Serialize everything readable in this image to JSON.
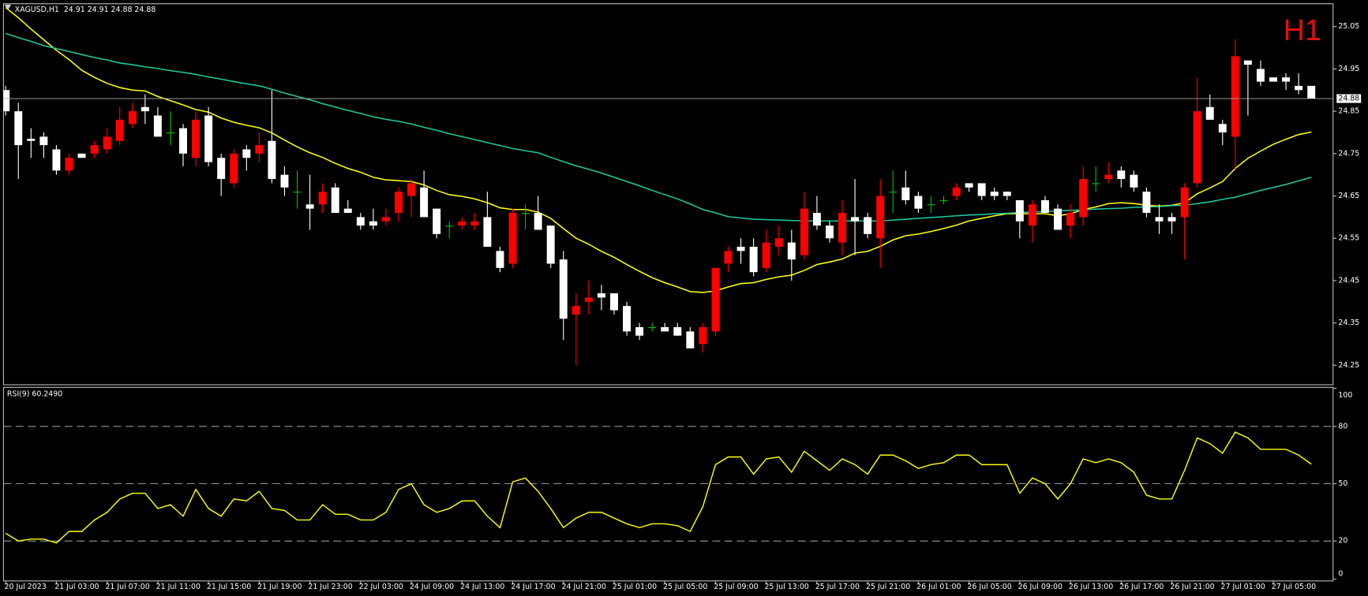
{
  "chart_data": [
    {
      "type": "candlestick",
      "title": "XAGUSD,H1  24.91 24.91 24.88 24.88",
      "label": "H1",
      "label_color": "#e01010",
      "up_color": "#ff0000",
      "down_color": "#ffffff",
      "doji_color": "#00c000",
      "categories": [
        "20 Jul 2023",
        null,
        null,
        null,
        "21 Jul 03:00",
        null,
        null,
        null,
        "21 Jul 07:00",
        null,
        null,
        null,
        "21 Jul 11:00",
        null,
        null,
        null,
        "21 Jul 15:00",
        null,
        null,
        null,
        "21 Jul 19:00",
        null,
        null,
        null,
        "21 Jul 23:00",
        null,
        null,
        null,
        "22 Jul 03:00",
        null,
        null,
        null,
        "24 Jul 09:00",
        null,
        null,
        null,
        "24 Jul 13:00",
        null,
        null,
        null,
        "24 Jul 17:00",
        null,
        null,
        null,
        "24 Jul 21:00",
        null,
        null,
        null,
        "25 Jul 01:00",
        null,
        null,
        null,
        "25 Jul 05:00",
        null,
        null,
        null,
        "25 Jul 09:00",
        null,
        null,
        null,
        "25 Jul 13:00",
        null,
        null,
        null,
        "25 Jul 17:00",
        null,
        null,
        null,
        "25 Jul 21:00",
        null,
        null,
        null,
        "26 Jul 01:00",
        null,
        null,
        null,
        "26 Jul 05:00",
        null,
        null,
        null,
        "26 Jul 09:00",
        null,
        null,
        null,
        "26 Jul 13:00",
        null,
        null,
        null,
        "26 Jul 17:00",
        null,
        null,
        null,
        "26 Jul 21:00",
        null,
        null,
        null,
        "27 Jul 01:00",
        null,
        null,
        null,
        "27 Jul 05:00",
        null,
        null,
        null
      ],
      "open": [
        24.9,
        24.85,
        24.785,
        24.79,
        24.76,
        24.71,
        24.75,
        24.75,
        24.76,
        24.78,
        24.82,
        24.86,
        24.84,
        24.8,
        24.81,
        24.74,
        24.84,
        24.74,
        24.68,
        24.76,
        24.75,
        24.78,
        24.7,
        24.66,
        24.63,
        24.63,
        24.67,
        24.62,
        24.6,
        24.59,
        24.59,
        24.61,
        24.65,
        24.67,
        24.62,
        24.58,
        24.58,
        24.58,
        24.6,
        24.52,
        24.49,
        24.61,
        24.61,
        24.58,
        24.5,
        24.37,
        24.4,
        24.42,
        24.42,
        24.39,
        24.34,
        24.34,
        24.34,
        24.34,
        24.33,
        24.3,
        24.33,
        24.49,
        24.53,
        24.53,
        24.48,
        24.53,
        24.54,
        24.51,
        24.61,
        24.58,
        24.54,
        24.6,
        24.6,
        24.55,
        24.66,
        24.67,
        24.65,
        24.63,
        24.64,
        24.65,
        24.68,
        24.68,
        24.66,
        24.66,
        24.64,
        24.58,
        24.64,
        24.62,
        24.58,
        24.6,
        24.68,
        24.69,
        24.71,
        24.7,
        24.66,
        24.6,
        24.6,
        24.6,
        24.68,
        24.86,
        24.82,
        24.79,
        24.97,
        24.95,
        24.93,
        24.93,
        24.91,
        24.91
      ],
      "high": [
        24.91,
        24.87,
        24.81,
        24.8,
        24.77,
        24.75,
        24.75,
        24.78,
        24.81,
        24.86,
        24.87,
        24.89,
        24.86,
        24.85,
        24.82,
        24.85,
        24.86,
        24.75,
        24.76,
        24.77,
        24.8,
        24.9,
        24.72,
        24.71,
        24.7,
        24.68,
        24.68,
        24.64,
        24.61,
        24.62,
        24.62,
        24.67,
        24.69,
        24.71,
        24.62,
        24.59,
        24.6,
        24.61,
        24.66,
        24.53,
        24.62,
        24.63,
        24.65,
        24.58,
        24.52,
        24.42,
        24.45,
        24.44,
        24.42,
        24.4,
        24.35,
        24.35,
        24.35,
        24.35,
        24.34,
        24.35,
        24.48,
        24.53,
        24.55,
        24.55,
        24.57,
        24.58,
        24.57,
        24.66,
        24.65,
        24.59,
        24.64,
        24.69,
        24.61,
        24.69,
        24.71,
        24.71,
        24.66,
        24.65,
        24.65,
        24.68,
        24.68,
        24.68,
        24.67,
        24.66,
        24.64,
        24.64,
        24.65,
        24.63,
        24.63,
        24.72,
        24.72,
        24.73,
        24.72,
        24.71,
        24.67,
        24.63,
        24.61,
        24.68,
        24.93,
        24.89,
        24.83,
        25.02,
        24.97,
        24.97,
        24.93,
        24.94,
        24.94,
        24.91
      ],
      "low": [
        24.84,
        24.69,
        24.74,
        24.74,
        24.7,
        24.7,
        24.74,
        24.74,
        24.75,
        24.77,
        24.81,
        24.82,
        24.79,
        24.77,
        24.72,
        24.72,
        24.72,
        24.65,
        24.67,
        24.71,
        24.73,
        24.68,
        24.65,
        24.62,
        24.57,
        24.61,
        24.61,
        24.61,
        24.57,
        24.57,
        24.58,
        24.59,
        24.6,
        24.6,
        24.55,
        24.55,
        24.57,
        24.57,
        24.53,
        24.47,
        24.48,
        24.57,
        24.57,
        24.48,
        24.31,
        24.25,
        24.37,
        24.38,
        24.37,
        24.32,
        24.31,
        24.33,
        24.33,
        24.32,
        24.29,
        24.28,
        24.32,
        24.47,
        24.49,
        24.46,
        24.47,
        24.51,
        24.45,
        24.5,
        24.57,
        24.54,
        24.51,
        24.51,
        24.55,
        24.48,
        24.61,
        24.63,
        24.61,
        24.61,
        24.63,
        24.64,
        24.66,
        24.64,
        24.64,
        24.64,
        24.55,
        24.54,
        24.61,
        24.57,
        24.55,
        24.58,
        24.66,
        24.68,
        24.67,
        24.66,
        24.6,
        24.56,
        24.56,
        24.5,
        24.67,
        24.83,
        24.77,
        24.71,
        24.84,
        24.91,
        24.92,
        24.9,
        24.89,
        24.88
      ],
      "close": [
        24.85,
        24.77,
        24.78,
        24.77,
        24.71,
        24.74,
        24.74,
        24.77,
        24.79,
        24.83,
        24.85,
        24.85,
        24.79,
        24.8,
        24.75,
        24.83,
        24.73,
        24.69,
        24.75,
        24.74,
        24.77,
        24.69,
        24.67,
        24.66,
        24.62,
        24.66,
        24.61,
        24.61,
        24.58,
        24.58,
        24.6,
        24.66,
        24.68,
        24.6,
        24.56,
        24.58,
        24.59,
        24.59,
        24.53,
        24.48,
        24.61,
        24.61,
        24.57,
        24.49,
        24.36,
        24.39,
        24.41,
        24.41,
        24.38,
        24.33,
        24.32,
        24.34,
        24.33,
        24.32,
        24.29,
        24.34,
        24.48,
        24.52,
        24.52,
        24.47,
        24.54,
        24.55,
        24.5,
        24.62,
        24.58,
        24.55,
        24.61,
        24.59,
        24.56,
        24.65,
        24.66,
        24.64,
        24.62,
        24.63,
        24.64,
        24.67,
        24.67,
        24.65,
        24.65,
        24.65,
        24.59,
        24.63,
        24.61,
        24.57,
        24.61,
        24.69,
        24.68,
        24.7,
        24.69,
        24.67,
        24.61,
        24.59,
        24.59,
        24.67,
        24.85,
        24.83,
        24.8,
        24.98,
        24.96,
        24.92,
        24.92,
        24.92,
        24.9,
        24.88
      ],
      "series": [
        {
          "color": "#ffff00",
          "values": [
            25.095,
            25.071,
            25.044,
            25.019,
            24.994,
            24.972,
            24.947,
            24.93,
            24.916,
            24.906,
            24.9,
            24.898,
            24.885,
            24.875,
            24.865,
            24.854,
            24.848,
            24.834,
            24.824,
            24.817,
            24.811,
            24.799,
            24.782,
            24.766,
            24.752,
            24.741,
            24.727,
            24.715,
            24.706,
            24.694,
            24.688,
            24.686,
            24.684,
            24.676,
            24.663,
            24.653,
            24.649,
            24.643,
            24.634,
            24.622,
            24.618,
            24.618,
            24.612,
            24.597,
            24.573,
            24.55,
            24.536,
            24.519,
            24.505,
            24.488,
            24.472,
            24.457,
            24.445,
            24.435,
            24.424,
            24.422,
            24.426,
            24.435,
            24.443,
            24.445,
            24.453,
            24.459,
            24.463,
            24.474,
            24.488,
            24.494,
            24.501,
            24.515,
            24.519,
            24.531,
            24.546,
            24.556,
            24.56,
            24.566,
            24.573,
            24.581,
            24.591,
            24.597,
            24.603,
            24.608,
            24.608,
            24.608,
            24.608,
            24.603,
            24.608,
            24.618,
            24.624,
            24.632,
            24.634,
            24.632,
            24.628,
            24.626,
            24.628,
            24.634,
            24.655,
            24.669,
            24.684,
            24.715,
            24.739,
            24.756,
            24.772,
            24.784,
            24.795,
            24.801
          ]
        },
        {
          "color": "#19c8a0",
          "values": [
            25.034,
            25.024,
            25.015,
            25.005,
            24.998,
            24.991,
            24.984,
            24.977,
            24.971,
            24.964,
            24.96,
            24.955,
            24.951,
            24.946,
            24.942,
            24.937,
            24.931,
            24.926,
            24.92,
            24.915,
            24.91,
            24.902,
            24.893,
            24.885,
            24.877,
            24.868,
            24.86,
            24.852,
            24.845,
            24.837,
            24.831,
            24.826,
            24.82,
            24.812,
            24.805,
            24.797,
            24.79,
            24.783,
            24.776,
            24.769,
            24.762,
            24.757,
            24.752,
            24.741,
            24.731,
            24.721,
            24.713,
            24.704,
            24.694,
            24.684,
            24.674,
            24.663,
            24.653,
            24.643,
            24.631,
            24.618,
            24.61,
            24.601,
            24.598,
            24.595,
            24.594,
            24.593,
            24.592,
            24.591,
            24.591,
            24.591,
            24.591,
            24.591,
            24.591,
            24.591,
            24.593,
            24.595,
            24.597,
            24.599,
            24.601,
            24.603,
            24.605,
            24.606,
            24.608,
            24.609,
            24.611,
            24.612,
            24.613,
            24.615,
            24.616,
            24.617,
            24.619,
            24.62,
            24.621,
            24.623,
            24.624,
            24.625,
            24.627,
            24.628,
            24.632,
            24.636,
            24.642,
            24.647,
            24.655,
            24.663,
            24.67,
            24.677,
            24.686,
            24.694
          ]
        }
      ],
      "last_price": 24.88,
      "ylim": [
        24.204,
        25.104
      ],
      "yticks": [
        25.05,
        24.95,
        24.85,
        24.75,
        24.65,
        24.55,
        24.45,
        24.35,
        24.25
      ]
    },
    {
      "type": "line",
      "title": "RSI(9) 60.2490",
      "color": "#ffff00",
      "values": [
        24,
        20,
        21,
        21,
        19,
        25,
        25,
        31,
        35,
        42,
        45,
        45,
        37,
        39,
        33,
        47,
        37,
        33,
        42,
        41,
        46,
        37,
        36,
        31,
        31,
        39,
        34,
        34,
        31,
        31,
        35,
        47,
        50,
        39,
        35,
        37,
        41,
        41,
        33,
        27,
        51,
        53,
        46,
        37,
        27,
        32,
        35,
        35,
        32,
        29,
        27,
        29,
        29,
        28,
        25,
        38,
        60,
        64,
        64,
        55,
        63,
        64,
        56,
        67,
        62,
        57,
        63,
        60,
        55,
        65,
        65,
        62,
        58,
        60,
        61,
        65,
        65,
        60,
        60,
        60,
        45,
        53,
        50,
        42,
        50,
        63,
        61,
        63,
        61,
        56,
        44,
        42,
        42,
        57,
        74,
        71,
        66,
        77,
        74,
        68,
        68,
        68,
        65,
        60.249
      ],
      "levels": [
        20,
        50,
        80
      ],
      "ylim": [
        0,
        100
      ],
      "yticks": [
        100,
        80,
        50,
        20,
        0
      ]
    }
  ]
}
